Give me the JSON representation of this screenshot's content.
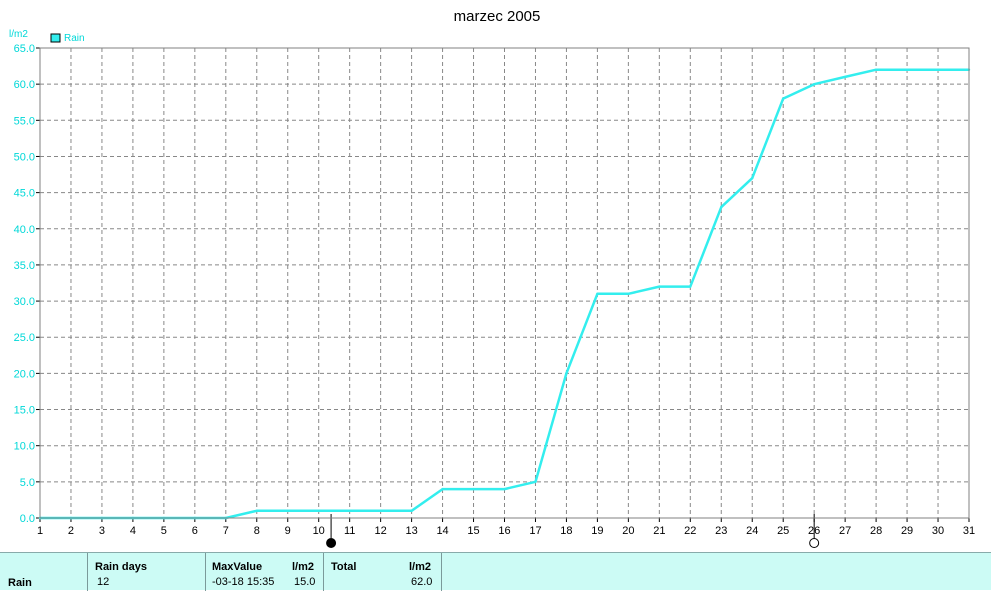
{
  "chart_data": {
    "type": "line",
    "title": "marzec 2005",
    "ylabel": "l/m2",
    "ylim": [
      0,
      65
    ],
    "yticks": [
      "0.0",
      "5.0",
      "10.0",
      "15.0",
      "20.0",
      "25.0",
      "30.0",
      "35.0",
      "40.0",
      "45.0",
      "50.0",
      "55.0",
      "60.0",
      "65.0"
    ],
    "xlim": [
      1,
      31
    ],
    "xticks": [
      "1",
      "2",
      "3",
      "4",
      "5",
      "6",
      "7",
      "8",
      "9",
      "10",
      "11",
      "12",
      "13",
      "14",
      "15",
      "16",
      "17",
      "18",
      "19",
      "20",
      "21",
      "22",
      "23",
      "24",
      "25",
      "26",
      "27",
      "28",
      "29",
      "30",
      "31"
    ],
    "grid": true,
    "legend": "top-left",
    "series": [
      {
        "name": "Rain",
        "color": "#33eeee",
        "x": [
          1,
          2,
          3,
          4,
          5,
          6,
          7,
          8,
          9,
          10,
          11,
          12,
          13,
          14,
          15,
          16,
          17,
          18,
          19,
          20,
          21,
          22,
          23,
          24,
          25,
          26,
          27,
          28,
          29,
          30,
          31
        ],
        "y": [
          0,
          0,
          0,
          0,
          0,
          0,
          0,
          1,
          1,
          1,
          1,
          1,
          1,
          4,
          4,
          4,
          5,
          20,
          31,
          31,
          32,
          32,
          43,
          47,
          58,
          60,
          61,
          62,
          62,
          62,
          62
        ]
      }
    ],
    "moon_markers": [
      {
        "x": 10.4,
        "phase": "new-moon",
        "symbol": "●"
      },
      {
        "x": 26,
        "phase": "full-moon",
        "symbol": "○"
      }
    ]
  },
  "summary": {
    "row_label": "Rain",
    "raindays_header": "Rain days",
    "raindays_value": "12",
    "maxvalue_header": "MaxValue",
    "maxvalue_unit": "l/m2",
    "maxvalue_when": "-03-18  15:35",
    "maxvalue_value": "15.0",
    "total_header": "Total",
    "total_unit": "l/m2",
    "total_value": "62.0"
  },
  "colors": {
    "series": "#33eeee",
    "axis_text": "#00d8d8",
    "grid": "#808080",
    "summary_bg": "#ccfbf5"
  }
}
